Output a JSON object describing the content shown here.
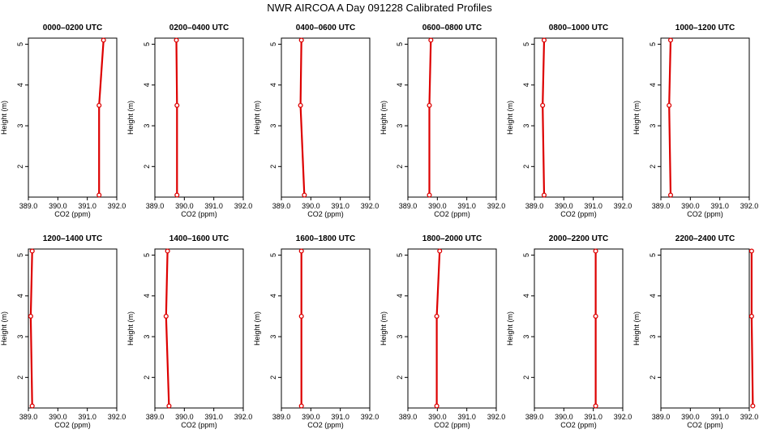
{
  "title": "NWR AIRCOA A  Day 091228  Calibrated Profiles",
  "colors": {
    "line": "#dd0000",
    "axis": "#000000"
  },
  "chart_data": [
    {
      "type": "line",
      "title": "0000–0200 UTC",
      "xlabel": "CO2 (ppm)",
      "ylabel": "Height (m)",
      "xlim": [
        389,
        392
      ],
      "ylim": [
        1.25,
        5.15
      ],
      "xticks": [
        "389.0",
        "390.0",
        "391.0",
        "392.0"
      ],
      "yticks": [
        "2",
        "3",
        "4",
        "5"
      ],
      "points": [
        {
          "x": 391.4,
          "y": 1.3
        },
        {
          "x": 391.4,
          "y": 3.5
        },
        {
          "x": 391.55,
          "y": 5.1
        }
      ]
    },
    {
      "type": "line",
      "title": "0200–0400 UTC",
      "xlabel": "CO2 (ppm)",
      "ylabel": "Height (m)",
      "xlim": [
        389,
        392
      ],
      "ylim": [
        1.25,
        5.15
      ],
      "xticks": [
        "389.0",
        "390.0",
        "391.0",
        "392.0"
      ],
      "yticks": [
        "2",
        "3",
        "4",
        "5"
      ],
      "points": [
        {
          "x": 389.75,
          "y": 1.3
        },
        {
          "x": 389.75,
          "y": 3.5
        },
        {
          "x": 389.73,
          "y": 5.1
        }
      ]
    },
    {
      "type": "line",
      "title": "0400–0600 UTC",
      "xlabel": "CO2 (ppm)",
      "ylabel": "Height (m)",
      "xlim": [
        389,
        392
      ],
      "ylim": [
        1.25,
        5.15
      ],
      "xticks": [
        "389.0",
        "390.0",
        "391.0",
        "392.0"
      ],
      "yticks": [
        "2",
        "3",
        "4",
        "5"
      ],
      "points": [
        {
          "x": 389.78,
          "y": 1.3
        },
        {
          "x": 389.65,
          "y": 3.5
        },
        {
          "x": 389.68,
          "y": 5.1
        }
      ]
    },
    {
      "type": "line",
      "title": "0600–0800 UTC",
      "xlabel": "CO2 (ppm)",
      "ylabel": "Height (m)",
      "xlim": [
        389,
        392
      ],
      "ylim": [
        1.25,
        5.15
      ],
      "xticks": [
        "389.0",
        "390.0",
        "391.0",
        "392.0"
      ],
      "yticks": [
        "2",
        "3",
        "4",
        "5"
      ],
      "points": [
        {
          "x": 389.73,
          "y": 1.3
        },
        {
          "x": 389.73,
          "y": 3.5
        },
        {
          "x": 389.78,
          "y": 5.1
        }
      ]
    },
    {
      "type": "line",
      "title": "0800–1000 UTC",
      "xlabel": "CO2 (ppm)",
      "ylabel": "Height (m)",
      "xlim": [
        389,
        392
      ],
      "ylim": [
        1.25,
        5.15
      ],
      "xticks": [
        "389.0",
        "390.0",
        "391.0",
        "392.0"
      ],
      "yticks": [
        "2",
        "3",
        "4",
        "5"
      ],
      "points": [
        {
          "x": 389.33,
          "y": 1.3
        },
        {
          "x": 389.28,
          "y": 3.5
        },
        {
          "x": 389.33,
          "y": 5.1
        }
      ]
    },
    {
      "type": "line",
      "title": "1000–1200 UTC",
      "xlabel": "CO2 (ppm)",
      "ylabel": "Height (m)",
      "xlim": [
        389,
        392
      ],
      "ylim": [
        1.25,
        5.15
      ],
      "xticks": [
        "389.0",
        "390.0",
        "391.0",
        "392.0"
      ],
      "yticks": [
        "2",
        "3",
        "4",
        "5"
      ],
      "points": [
        {
          "x": 389.33,
          "y": 1.3
        },
        {
          "x": 389.28,
          "y": 3.5
        },
        {
          "x": 389.33,
          "y": 5.1
        }
      ]
    },
    {
      "type": "line",
      "title": "1200–1400 UTC",
      "xlabel": "CO2 (ppm)",
      "ylabel": "Height (m)",
      "xlim": [
        389,
        392
      ],
      "ylim": [
        1.25,
        5.15
      ],
      "xticks": [
        "389.0",
        "390.0",
        "391.0",
        "392.0"
      ],
      "yticks": [
        "2",
        "3",
        "4",
        "5"
      ],
      "points": [
        {
          "x": 389.13,
          "y": 1.3
        },
        {
          "x": 389.08,
          "y": 3.5
        },
        {
          "x": 389.13,
          "y": 5.1
        }
      ]
    },
    {
      "type": "line",
      "title": "1400–1600 UTC",
      "xlabel": "CO2 (ppm)",
      "ylabel": "Height (m)",
      "xlim": [
        389,
        392
      ],
      "ylim": [
        1.25,
        5.15
      ],
      "xticks": [
        "389.0",
        "390.0",
        "391.0",
        "392.0"
      ],
      "yticks": [
        "2",
        "3",
        "4",
        "5"
      ],
      "points": [
        {
          "x": 389.48,
          "y": 1.3
        },
        {
          "x": 389.38,
          "y": 3.5
        },
        {
          "x": 389.43,
          "y": 5.1
        }
      ]
    },
    {
      "type": "line",
      "title": "1600–1800 UTC",
      "xlabel": "CO2 (ppm)",
      "ylabel": "Height (m)",
      "xlim": [
        389,
        392
      ],
      "ylim": [
        1.25,
        5.15
      ],
      "xticks": [
        "389.0",
        "390.0",
        "391.0",
        "392.0"
      ],
      "yticks": [
        "2",
        "3",
        "4",
        "5"
      ],
      "points": [
        {
          "x": 389.68,
          "y": 1.3
        },
        {
          "x": 389.68,
          "y": 3.5
        },
        {
          "x": 389.68,
          "y": 5.1
        }
      ]
    },
    {
      "type": "line",
      "title": "1800–2000 UTC",
      "xlabel": "CO2 (ppm)",
      "ylabel": "Height (m)",
      "xlim": [
        389,
        392
      ],
      "ylim": [
        1.25,
        5.15
      ],
      "xticks": [
        "389.0",
        "390.0",
        "391.0",
        "392.0"
      ],
      "yticks": [
        "2",
        "3",
        "4",
        "5"
      ],
      "points": [
        {
          "x": 389.98,
          "y": 1.3
        },
        {
          "x": 389.98,
          "y": 3.5
        },
        {
          "x": 390.08,
          "y": 5.1
        }
      ]
    },
    {
      "type": "line",
      "title": "2000–2200 UTC",
      "xlabel": "CO2 (ppm)",
      "ylabel": "Height (m)",
      "xlim": [
        389,
        392
      ],
      "ylim": [
        1.25,
        5.15
      ],
      "xticks": [
        "389.0",
        "390.0",
        "391.0",
        "392.0"
      ],
      "yticks": [
        "2",
        "3",
        "4",
        "5"
      ],
      "points": [
        {
          "x": 391.08,
          "y": 1.3
        },
        {
          "x": 391.08,
          "y": 3.5
        },
        {
          "x": 391.08,
          "y": 5.1
        }
      ]
    },
    {
      "type": "line",
      "title": "2200–2400 UTC",
      "xlabel": "CO2 (ppm)",
      "ylabel": "Height (m)",
      "xlim": [
        389,
        392
      ],
      "ylim": [
        1.25,
        5.15
      ],
      "xticks": [
        "389.0",
        "390.0",
        "391.0",
        "392.0"
      ],
      "yticks": [
        "2",
        "3",
        "4",
        "5"
      ],
      "points": [
        {
          "x": 392.12,
          "y": 1.3
        },
        {
          "x": 392.08,
          "y": 3.5
        },
        {
          "x": 392.08,
          "y": 5.1
        }
      ]
    }
  ]
}
